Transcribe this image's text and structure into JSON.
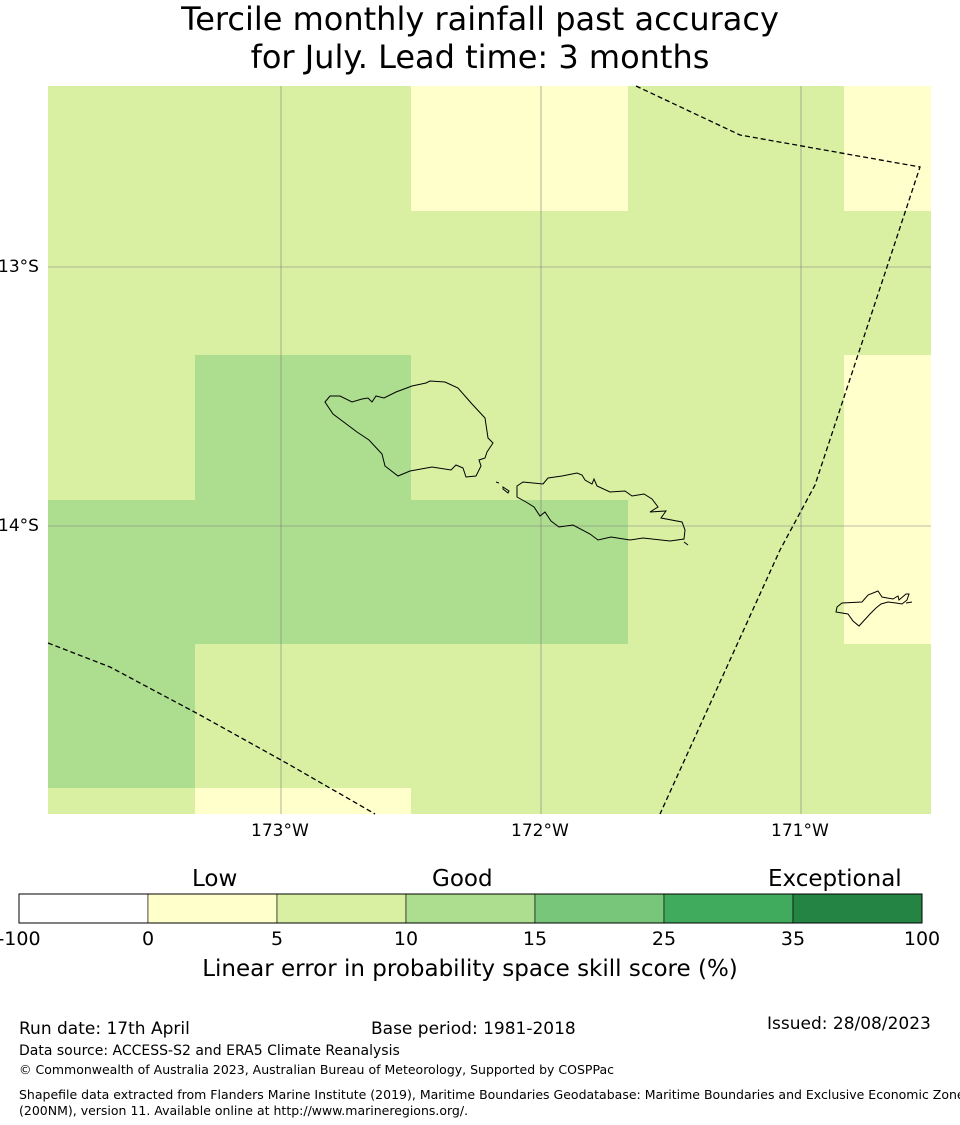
{
  "title": {
    "line1": "Tercile monthly rainfall past accuracy",
    "line2": "for July. Lead time: 3 months"
  },
  "map": {
    "lat_labels": [
      "13°S",
      "14°S"
    ],
    "lon_labels": [
      "173°W",
      "172°W",
      "171°W"
    ],
    "colors": {
      "low": "#ffffcc",
      "light_green": "#d9f0a3",
      "mid_green": "#addd8e",
      "coast": "#000000",
      "grid": "#7f7f7f"
    }
  },
  "colorbar": {
    "categories": [
      "Low",
      "Good",
      "Exceptional"
    ],
    "ticks": [
      "-100",
      "0",
      "5",
      "10",
      "15",
      "25",
      "35",
      "100"
    ],
    "colors": [
      "#ffffff",
      "#ffffcc",
      "#d9f0a3",
      "#addd8e",
      "#78c679",
      "#41ab5d",
      "#238443"
    ],
    "label": "Linear error in probability space skill score (%)"
  },
  "footer": {
    "run_date": "Run date: 17th April",
    "base_period": "Base period: 1981-2018",
    "issued": "Issued: 28/08/2023",
    "data_source": "Data source: ACCESS-S2 and ERA5 Climate Reanalysis",
    "copyright": "© Commonwealth of Australia 2023, Australian Bureau of Meteorology, Supported by COSPPac",
    "shapefile_line1": "Shapefile data extracted from Flanders Marine Institute (2019), Maritime Boundaries Geodatabase: Maritime Boundaries and Exclusive Economic Zones",
    "shapefile_line2": "(200NM), version 11. Available online at http://www.marineregions.org/."
  }
}
